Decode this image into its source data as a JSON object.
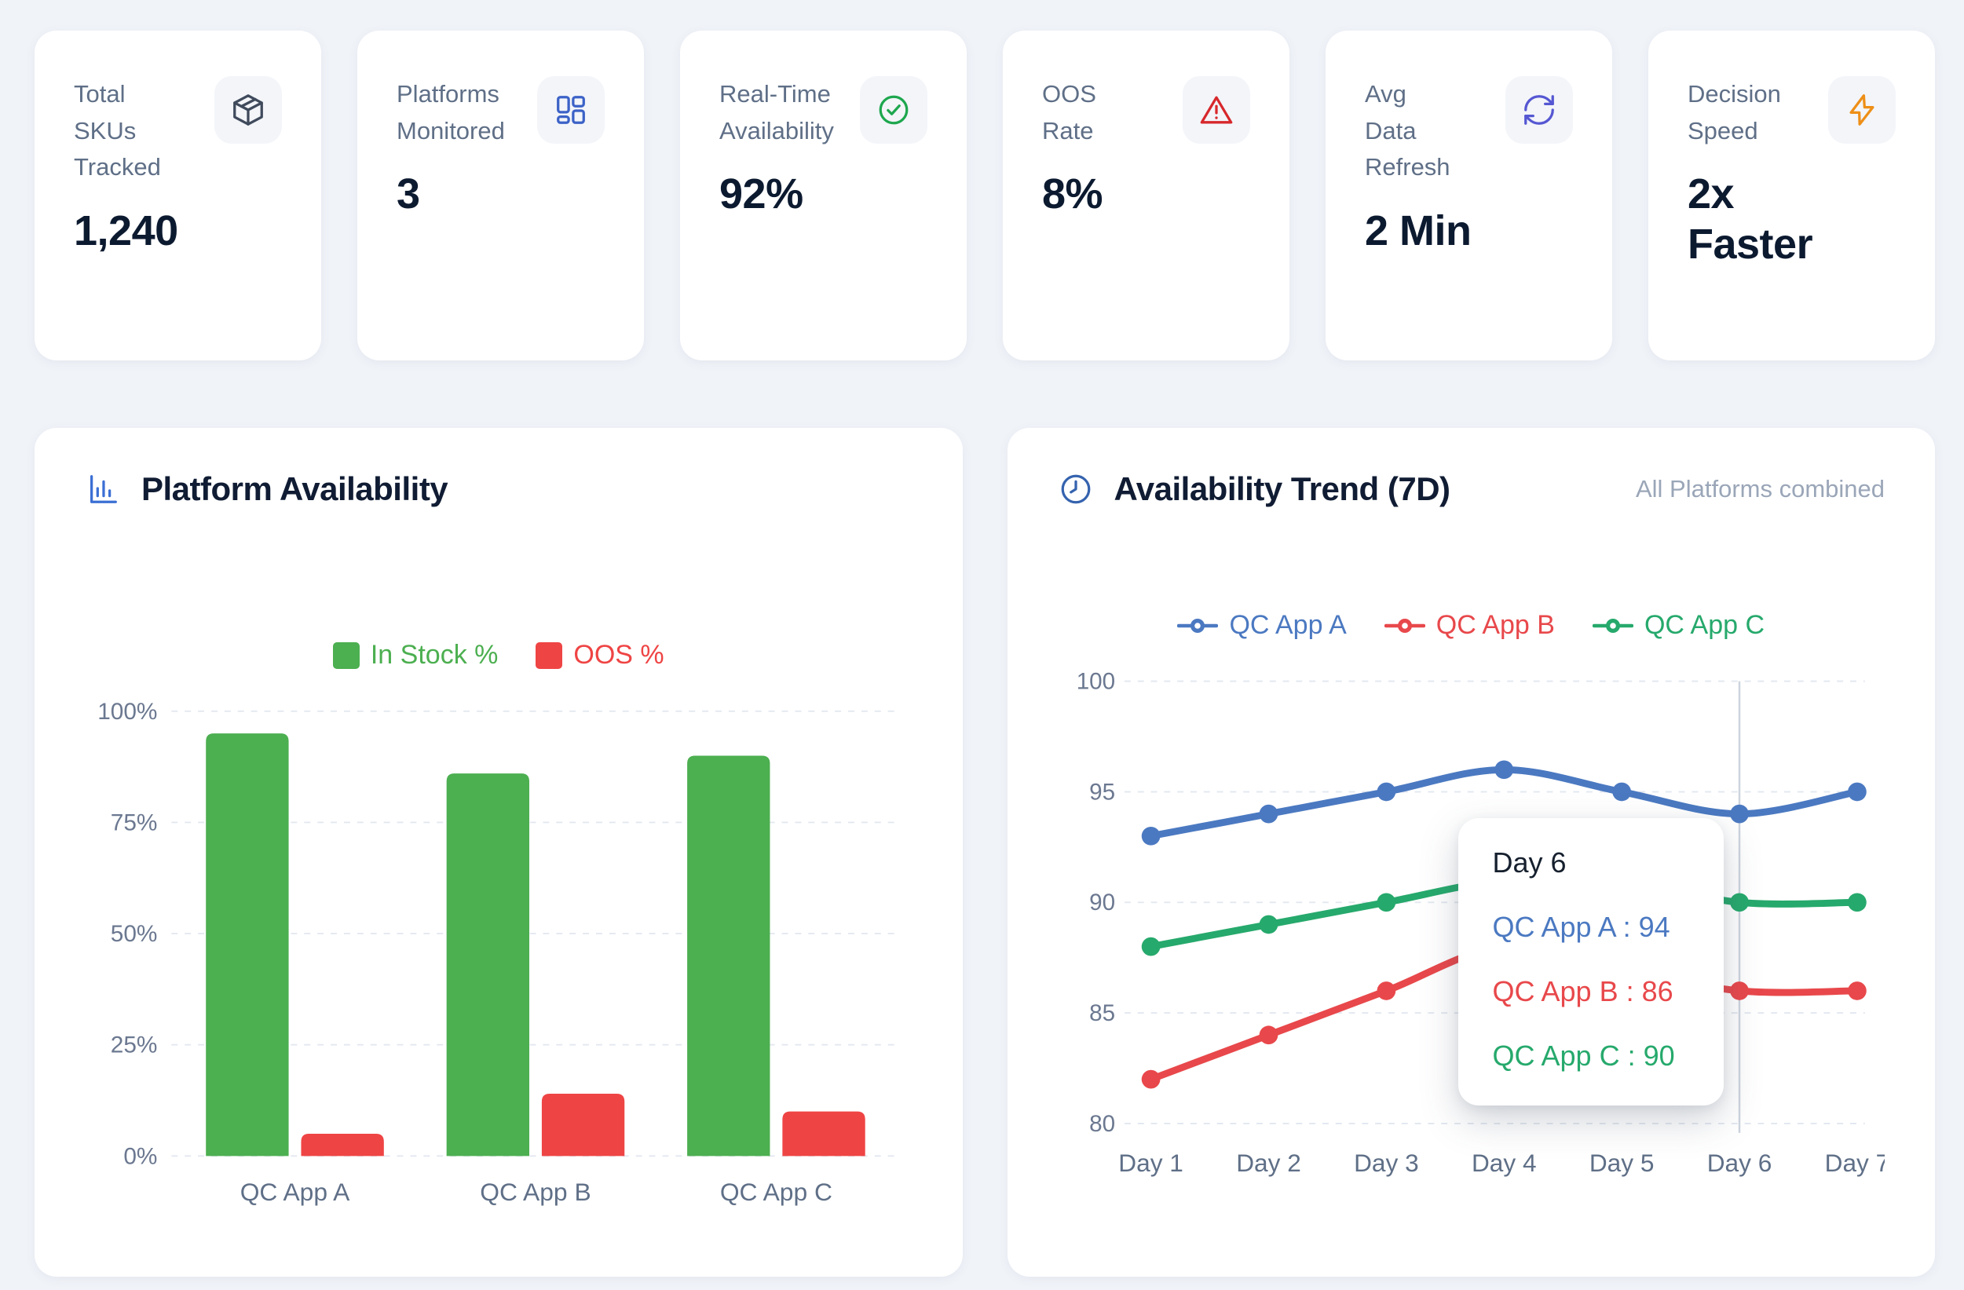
{
  "page": {
    "background": "#f0f3f8"
  },
  "kpi_cards": [
    {
      "label": "Total\nSKUs\nTracked",
      "value": "1,240",
      "icon": "package-icon",
      "icon_color": "#3f4a5c"
    },
    {
      "label": "Platforms\nMonitored",
      "value": "3",
      "icon": "grid-icon",
      "icon_color": "#3c62c7"
    },
    {
      "label": "Real-Time\nAvailability",
      "value": "92%",
      "icon": "check-circle-icon",
      "icon_color": "#1ea74e"
    },
    {
      "label": "OOS\nRate",
      "value": "8%",
      "icon": "alert-triangle-icon",
      "icon_color": "#d7282c"
    },
    {
      "label": "Avg\nData\nRefresh",
      "value": "2 Min",
      "icon": "refresh-icon",
      "icon_color": "#5557d2"
    },
    {
      "label": "Decision\nSpeed",
      "value": "2x\nFaster",
      "icon": "bolt-icon",
      "icon_color": "#ee8f17"
    }
  ],
  "chart_data": [
    {
      "type": "bar",
      "title": "Platform Availability",
      "icon": "bar-chart-icon",
      "icon_color": "#3b6fd4",
      "categories": [
        "QC App A",
        "QC App B",
        "QC App C"
      ],
      "series": [
        {
          "name": "In Stock %",
          "color": "#4caf50",
          "values": [
            95,
            86,
            90
          ]
        },
        {
          "name": "OOS %",
          "color": "#ef4444",
          "values": [
            5,
            14,
            10
          ]
        }
      ],
      "ylim": [
        0,
        100
      ],
      "yticks": [
        0,
        25,
        50,
        75,
        100
      ],
      "ytick_suffix": "%",
      "grid": "dashed-horizontal",
      "legend_position": "top-center"
    },
    {
      "type": "line",
      "title": "Availability Trend (7D)",
      "subtitle": "All Platforms combined",
      "icon": "clock-icon",
      "icon_color": "#3563ae",
      "x": [
        "Day 1",
        "Day 2",
        "Day 3",
        "Day 4",
        "Day 5",
        "Day 6",
        "Day 7"
      ],
      "series": [
        {
          "name": "QC App A",
          "color": "#4b79c1",
          "values": [
            93,
            94,
            95,
            96,
            95,
            94,
            95
          ]
        },
        {
          "name": "QC App B",
          "color": "#e8484b",
          "values": [
            82,
            84,
            86,
            88,
            87,
            86,
            86
          ]
        },
        {
          "name": "QC App C",
          "color": "#26a96c",
          "values": [
            88,
            89,
            90,
            91,
            91,
            90,
            90
          ]
        }
      ],
      "ylim": [
        80,
        100
      ],
      "yticks": [
        80,
        85,
        90,
        95,
        100
      ],
      "grid": "dashed-horizontal",
      "legend_position": "top-center",
      "hover": {
        "x_index": 5,
        "label": "Day 6",
        "values": [
          {
            "series": "QC App A",
            "value": 94
          },
          {
            "series": "QC App B",
            "value": 86
          },
          {
            "series": "QC App C",
            "value": 90
          }
        ]
      }
    }
  ]
}
